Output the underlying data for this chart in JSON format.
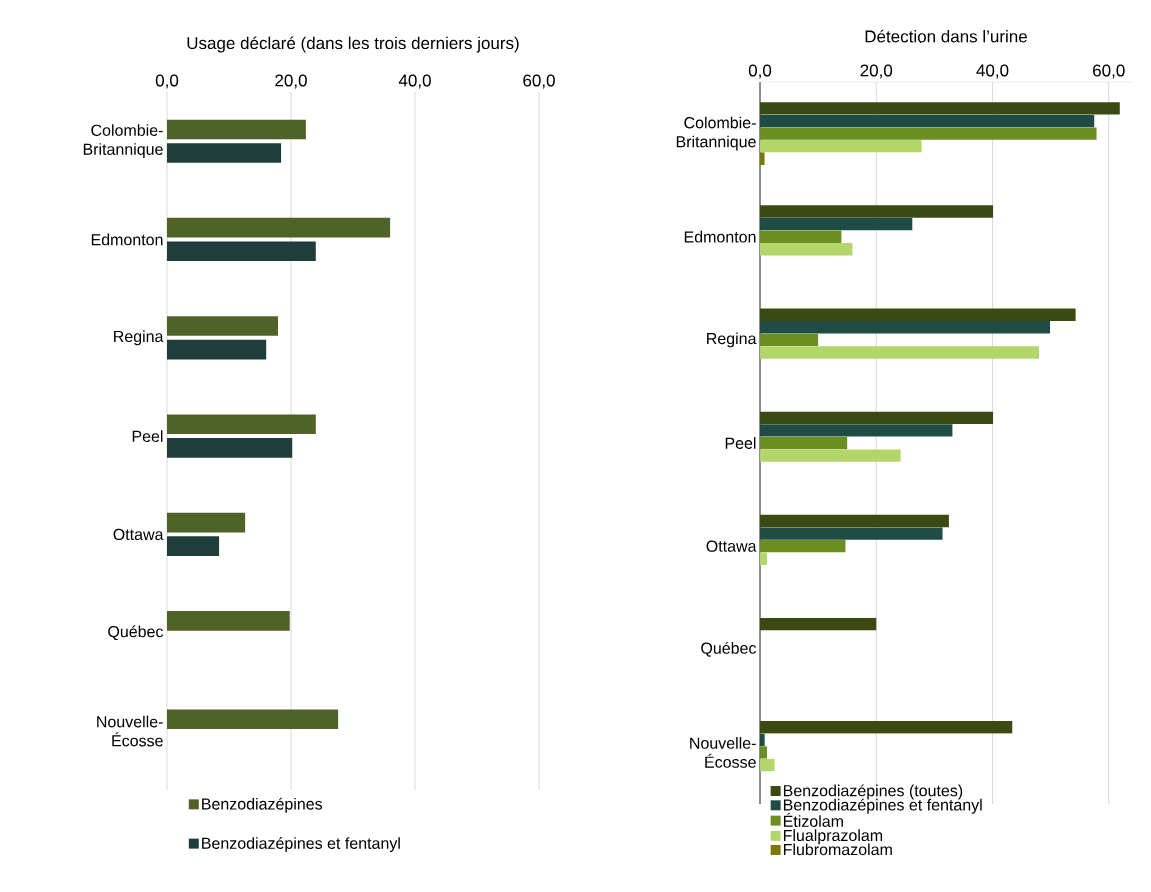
{
  "chart_data": [
    {
      "type": "bar",
      "orientation": "horizontal",
      "title": "Usage déclaré (dans les trois derniers jours)",
      "categories": [
        "Colombie-Britannique",
        "Edmonton",
        "Regina",
        "Peel",
        "Ottawa",
        "Québec",
        "Nouvelle-Écosse"
      ],
      "series": [
        {
          "name": "Benzodiazépines",
          "color": "#4f6228",
          "values": [
            22.4,
            36.0,
            17.9,
            24.0,
            12.6,
            19.8,
            27.6
          ]
        },
        {
          "name": "Benzodiazépines et fentanyl",
          "color": "#1f3d3a",
          "values": [
            18.4,
            24.0,
            16.0,
            20.2,
            8.4,
            null,
            null
          ]
        }
      ],
      "xlim": [
        0,
        60
      ],
      "xticks": [
        {
          "value": 0,
          "label": "0,0"
        },
        {
          "value": 20,
          "label": "20,0"
        },
        {
          "value": 40,
          "label": "40,0"
        },
        {
          "value": 60,
          "label": "60,0"
        }
      ],
      "grid": "x",
      "legend": "bottom"
    },
    {
      "type": "bar",
      "orientation": "horizontal",
      "title": "Détection dans l’urine",
      "categories": [
        "Colombie-Britannique",
        "Edmonton",
        "Regina",
        "Peel",
        "Ottawa",
        "Québec",
        "Nouvelle-Écosse"
      ],
      "series": [
        {
          "name": "Benzodiazépines (toutes)",
          "color": "#3b4a12",
          "values": [
            61.9,
            40.1,
            54.3,
            40.1,
            32.5,
            20.0,
            43.4
          ]
        },
        {
          "name": "Benzodiazépines et fentanyl",
          "color": "#1f4d45",
          "values": [
            57.5,
            26.2,
            49.9,
            33.1,
            31.4,
            null,
            0.8
          ]
        },
        {
          "name": "Étizolam",
          "color": "#6b8e23",
          "values": [
            57.9,
            14.0,
            10.0,
            15.0,
            14.7,
            null,
            1.2
          ]
        },
        {
          "name": "Flualprazolam",
          "color": "#b3d66b",
          "values": [
            27.8,
            15.9,
            48.0,
            24.2,
            1.2,
            null,
            2.5
          ]
        },
        {
          "name": "Flubromazolam",
          "color": "#7a7a00",
          "values": [
            0.8,
            null,
            null,
            null,
            null,
            null,
            null
          ]
        }
      ],
      "xlim": [
        0,
        64
      ],
      "xticks": [
        {
          "value": 0,
          "label": "0,0"
        },
        {
          "value": 20,
          "label": "20,0"
        },
        {
          "value": 40,
          "label": "40,0"
        },
        {
          "value": 60,
          "label": "60,0"
        }
      ],
      "grid": "x",
      "legend": "bottom"
    }
  ]
}
